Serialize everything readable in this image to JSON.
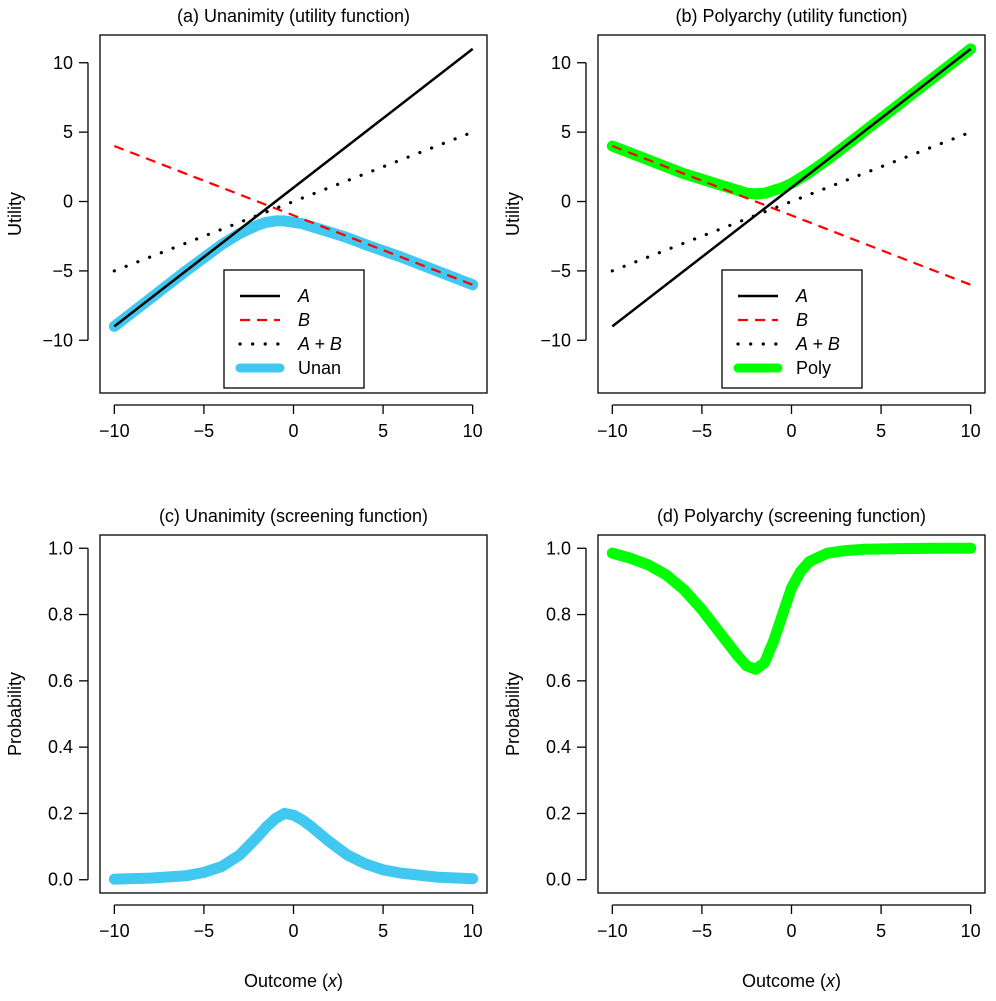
{
  "figure": {
    "xlabel_prefix": "Outcome (",
    "xlabel_var": "x",
    "xlabel_suffix": ")"
  },
  "chart_data": [
    {
      "id": "a",
      "type": "line",
      "title": "(a) Unanimity (utility function)",
      "xlabel": "",
      "ylabel": "Utility",
      "xlim": [
        -10.8,
        10.8
      ],
      "ylim": [
        -13.8,
        12.0
      ],
      "xticks": [
        -10,
        -5,
        0,
        5,
        10
      ],
      "xtick_labels": [
        "−10",
        "−5",
        "0",
        "5",
        "10"
      ],
      "yticks": [
        -10,
        -5,
        0,
        5,
        10
      ],
      "ytick_labels": [
        "−10",
        "−5",
        "0",
        "5",
        "10"
      ],
      "grid": false,
      "legend_position": "bottom-center",
      "series": [
        {
          "name": "A",
          "style": "solid",
          "color": "#000000",
          "x": [
            -10,
            10
          ],
          "y": [
            -9,
            11
          ]
        },
        {
          "name": "B",
          "style": "dashed",
          "color": "#ff0000",
          "x": [
            -10,
            10
          ],
          "y": [
            4,
            -6
          ]
        },
        {
          "name": "A + B",
          "style": "dotted",
          "color": "#000000",
          "x": [
            -10,
            10
          ],
          "y": [
            -5,
            5
          ]
        },
        {
          "name": "Unan",
          "style": "thick",
          "color": "#40c8f0",
          "x": [
            -10,
            -8,
            -6,
            -4,
            -3,
            -2,
            -1.5,
            -1,
            -0.5,
            0,
            0.5,
            1,
            2,
            3,
            4,
            6,
            8,
            10
          ],
          "y": [
            -9.0,
            -7.0,
            -5.0,
            -3.1,
            -2.3,
            -1.7,
            -1.5,
            -1.4,
            -1.4,
            -1.5,
            -1.6,
            -1.8,
            -2.2,
            -2.6,
            -3.1,
            -4.0,
            -5.0,
            -6.0
          ]
        }
      ],
      "legend": [
        "A",
        "B",
        "A + B",
        "Unan"
      ]
    },
    {
      "id": "b",
      "type": "line",
      "title": "(b) Polyarchy (utility function)",
      "xlabel": "",
      "ylabel": "Utility",
      "xlim": [
        -10.8,
        10.8
      ],
      "ylim": [
        -13.8,
        12.0
      ],
      "xticks": [
        -10,
        -5,
        0,
        5,
        10
      ],
      "xtick_labels": [
        "−10",
        "−5",
        "0",
        "5",
        "10"
      ],
      "yticks": [
        -10,
        -5,
        0,
        5,
        10
      ],
      "ytick_labels": [
        "−10",
        "−5",
        "0",
        "5",
        "10"
      ],
      "grid": false,
      "legend_position": "bottom-center",
      "series": [
        {
          "name": "A",
          "style": "solid",
          "color": "#000000",
          "x": [
            -10,
            10
          ],
          "y": [
            -9,
            11
          ]
        },
        {
          "name": "B",
          "style": "dashed",
          "color": "#ff0000",
          "x": [
            -10,
            10
          ],
          "y": [
            4,
            -6
          ]
        },
        {
          "name": "A + B",
          "style": "dotted",
          "color": "#000000",
          "x": [
            -10,
            10
          ],
          "y": [
            -5,
            5
          ]
        },
        {
          "name": "Poly",
          "style": "thick",
          "color": "#00ff00",
          "x": [
            -10,
            -8,
            -6,
            -5,
            -4,
            -3,
            -2.5,
            -2,
            -1.5,
            -1,
            -0.5,
            0,
            1,
            2,
            4,
            6,
            8,
            10
          ],
          "y": [
            4.0,
            3.0,
            2.0,
            1.6,
            1.2,
            0.8,
            0.6,
            0.55,
            0.6,
            0.8,
            1.0,
            1.3,
            2.1,
            3.0,
            5.0,
            7.0,
            9.0,
            11.0
          ]
        }
      ],
      "legend": [
        "A",
        "B",
        "A + B",
        "Poly"
      ]
    },
    {
      "id": "c",
      "type": "line",
      "title": "(c) Unanimity (screening function)",
      "xlabel": "Outcome (x)",
      "ylabel": "Probability",
      "xlim": [
        -10.8,
        10.8
      ],
      "ylim": [
        -0.04,
        1.04
      ],
      "xticks": [
        -10,
        -5,
        0,
        5,
        10
      ],
      "xtick_labels": [
        "−10",
        "−5",
        "0",
        "5",
        "10"
      ],
      "yticks": [
        0,
        0.2,
        0.4,
        0.6,
        0.8,
        1.0
      ],
      "ytick_labels": [
        "0.0",
        "0.2",
        "0.4",
        "0.6",
        "0.8",
        "1.0"
      ],
      "grid": false,
      "series": [
        {
          "name": "Unan",
          "style": "thick",
          "color": "#40c8f0",
          "x": [
            -10,
            -8,
            -6,
            -5,
            -4,
            -3,
            -2,
            -1.5,
            -1,
            -0.5,
            0,
            0.5,
            1,
            2,
            3,
            4,
            5,
            6,
            8,
            10
          ],
          "y": [
            0.002,
            0.005,
            0.012,
            0.022,
            0.04,
            0.075,
            0.13,
            0.16,
            0.185,
            0.2,
            0.195,
            0.18,
            0.16,
            0.115,
            0.075,
            0.048,
            0.03,
            0.02,
            0.008,
            0.003
          ]
        }
      ]
    },
    {
      "id": "d",
      "type": "line",
      "title": "(d) Polyarchy (screening function)",
      "xlabel": "Outcome (x)",
      "ylabel": "Probability",
      "xlim": [
        -10.8,
        10.8
      ],
      "ylim": [
        -0.04,
        1.04
      ],
      "xticks": [
        -10,
        -5,
        0,
        5,
        10
      ],
      "xtick_labels": [
        "−10",
        "−5",
        "0",
        "5",
        "10"
      ],
      "yticks": [
        0,
        0.2,
        0.4,
        0.6,
        0.8,
        1.0
      ],
      "ytick_labels": [
        "0.0",
        "0.2",
        "0.4",
        "0.6",
        "0.8",
        "1.0"
      ],
      "grid": false,
      "series": [
        {
          "name": "Poly",
          "style": "thick",
          "color": "#00ff00",
          "x": [
            -10,
            -9,
            -8,
            -7,
            -6,
            -5,
            -4,
            -3.5,
            -3,
            -2.5,
            -2,
            -1.5,
            -1,
            -0.5,
            0,
            0.5,
            1,
            2,
            3,
            4,
            6,
            8,
            10
          ],
          "y": [
            0.985,
            0.97,
            0.95,
            0.92,
            0.875,
            0.815,
            0.745,
            0.71,
            0.675,
            0.645,
            0.635,
            0.655,
            0.72,
            0.8,
            0.88,
            0.93,
            0.96,
            0.985,
            0.993,
            0.997,
            0.999,
            1.0,
            1.0
          ]
        }
      ]
    }
  ]
}
